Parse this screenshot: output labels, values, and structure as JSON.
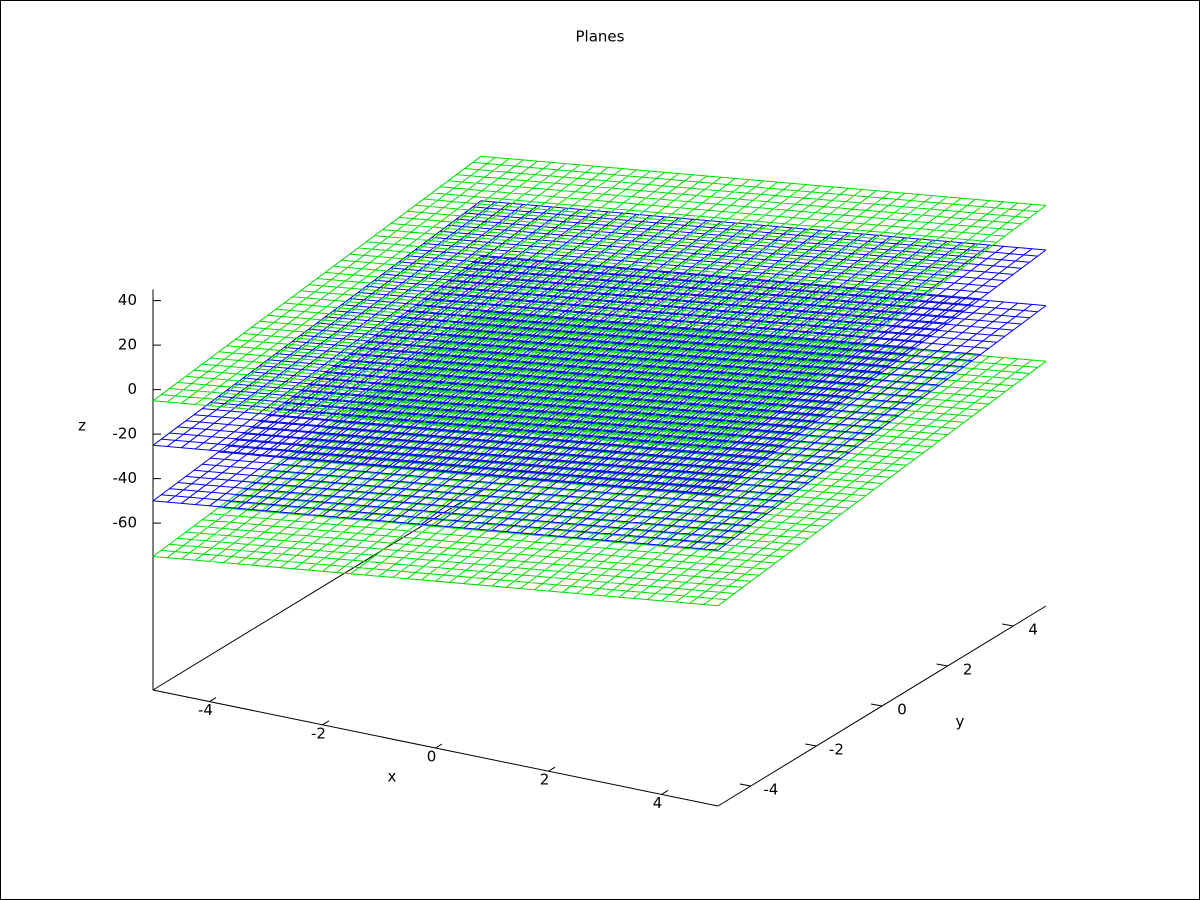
{
  "chart_data": {
    "type": "surface3d",
    "title": "Planes",
    "xlabel": "x",
    "ylabel": "y",
    "zlabel": "z",
    "xlim": [
      -5,
      5
    ],
    "ylim": [
      -5,
      5
    ],
    "zlim": [
      -75,
      45
    ],
    "xticks": [
      -4,
      -2,
      0,
      2,
      4
    ],
    "yticks": [
      -4,
      -2,
      0,
      2,
      4
    ],
    "zticks": [
      -60,
      -40,
      -20,
      0,
      20,
      40
    ],
    "ticslevel": 0.5,
    "series": [
      {
        "color": "#00dd00",
        "values": [
          -75,
          -45,
          -25,
          -55
        ]
      },
      {
        "color": "#0000ee",
        "values": [
          -50,
          -20,
          0,
          -30
        ]
      },
      {
        "color": "#0000ee",
        "values": [
          -25,
          5,
          25,
          -5
        ]
      },
      {
        "color": "#00dd00",
        "values": [
          -5,
          25,
          45,
          15
        ]
      }
    ]
  }
}
